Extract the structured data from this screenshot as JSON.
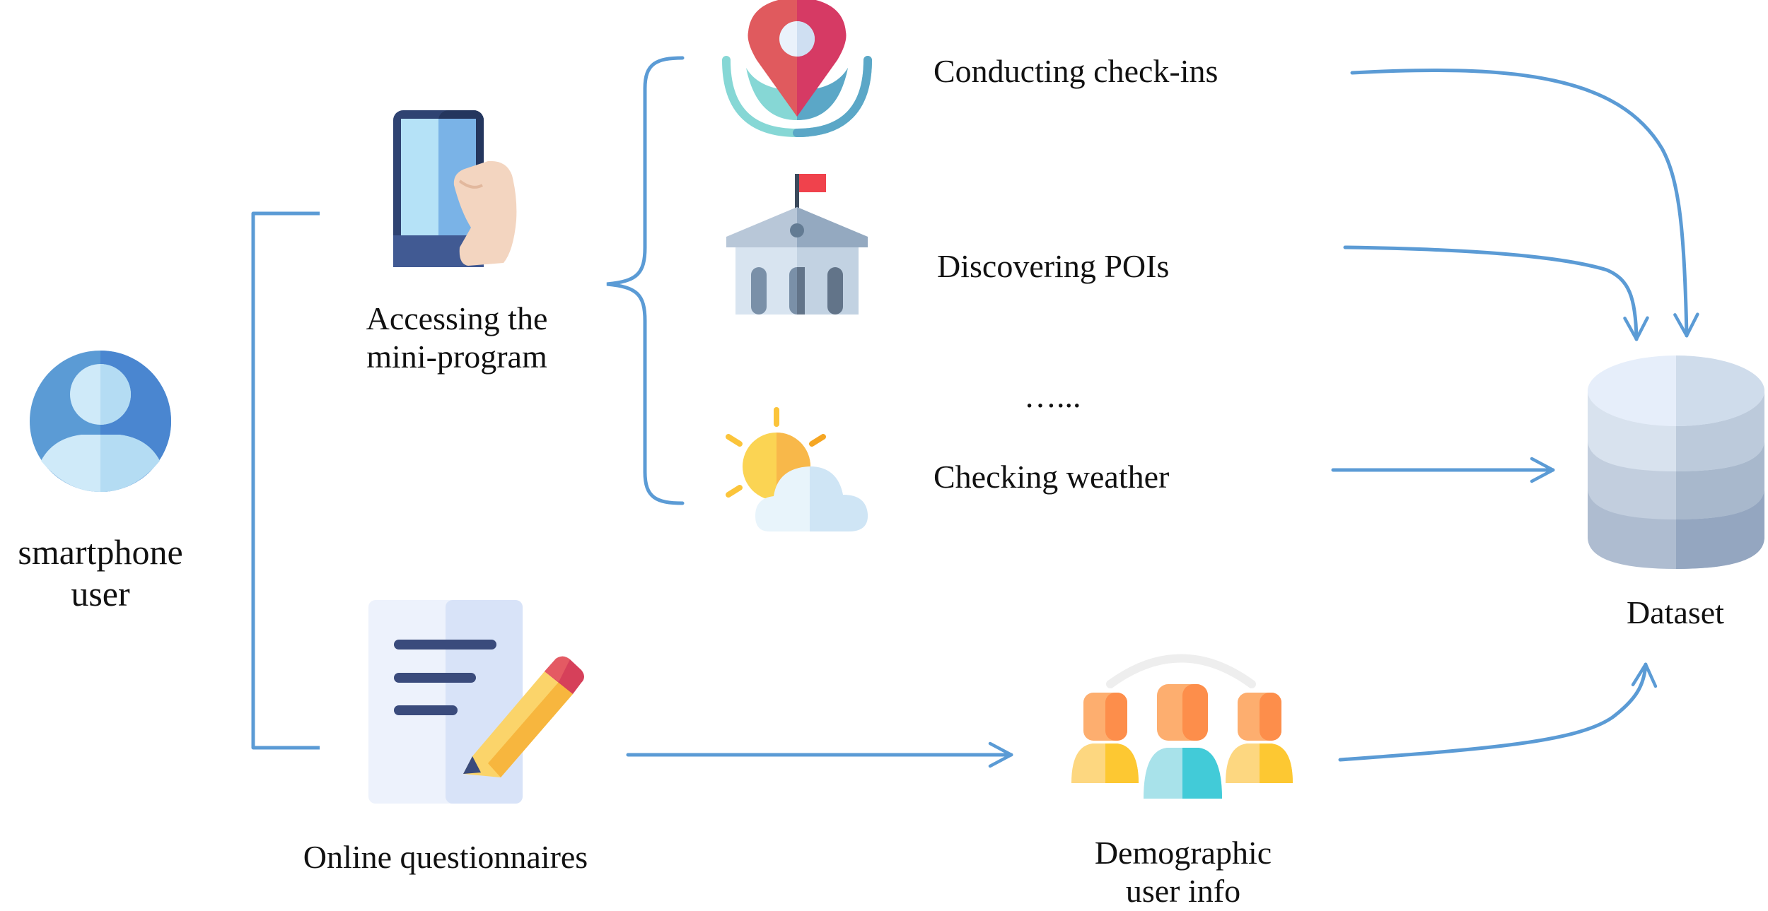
{
  "diagram": {
    "user": {
      "line1": "smartphone",
      "line2": "user"
    },
    "mini_program": {
      "line1": "Accessing the",
      "line2": "mini-program"
    },
    "checkins": "Conducting check-ins",
    "pois": "Discovering POIs",
    "ellipsis": "…...",
    "weather": "Checking weather",
    "questionnaires": "Online questionnaires",
    "demographic": {
      "line1": "Demographic",
      "line2": "user info"
    },
    "dataset": "Dataset"
  },
  "colors": {
    "connector": "#5b9bd5",
    "text": "#111111"
  },
  "icons": [
    "user-avatar-icon",
    "smartphone-hand-icon",
    "location-pin-icon",
    "building-poi-icon",
    "weather-icon",
    "questionnaire-icon",
    "group-users-icon",
    "database-icon"
  ]
}
